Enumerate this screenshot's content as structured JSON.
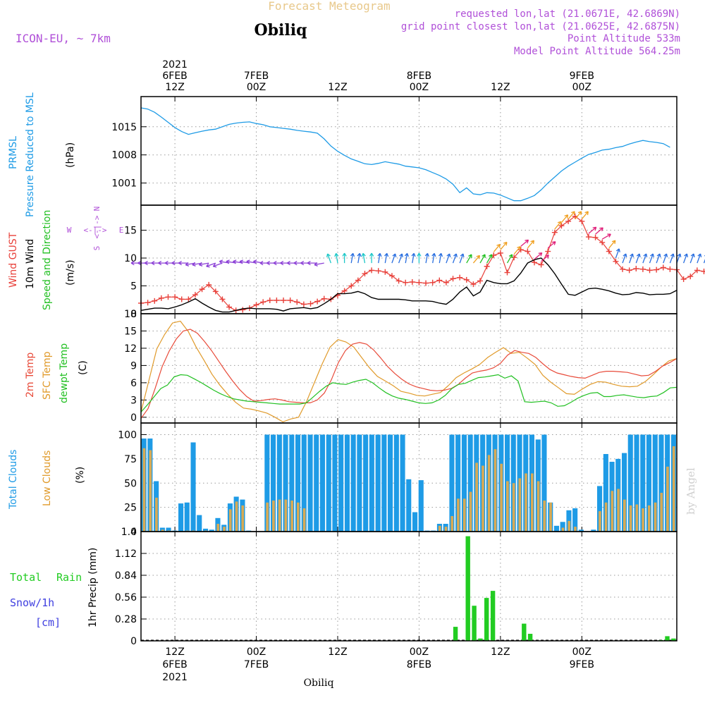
{
  "header": {
    "title_top": "Forecast Meteogram",
    "station": "Obiliq",
    "model": "ICON-EU, ~ 7km",
    "requested": "requested lon,lat (21.0671E, 42.6869N)",
    "grid_point": "grid point closest lon,lat (21.0625E, 42.6875N)",
    "point_altitude": "Point Altitude 533m",
    "model_altitude": "Model Point Altitude 564.25m",
    "credit": "by Angel"
  },
  "colors": {
    "pressure": "#1e9be6",
    "gust": "#e8403a",
    "wind10": "#000000",
    "temp2m": "#e84b3a",
    "sfc": "#e09a2a",
    "dewpt": "#22c022",
    "total_cloud": "#1e9be6",
    "low_cloud": "#d7aa55",
    "rain": "#22cc22",
    "snow": "#4040e0",
    "legend_purple": "#b050d8",
    "title_orange": "#e8c88a"
  },
  "time_axis": {
    "top_labels": [
      {
        "hour": 12,
        "lines": [
          "2021",
          "6FEB",
          "12Z"
        ]
      },
      {
        "hour": 24,
        "lines": [
          "7FEB",
          "00Z"
        ]
      },
      {
        "hour": 36,
        "lines": [
          "12Z"
        ]
      },
      {
        "hour": 48,
        "lines": [
          "8FEB",
          "00Z"
        ]
      },
      {
        "hour": 60,
        "lines": [
          "12Z"
        ]
      },
      {
        "hour": 72,
        "lines": [
          "9FEB",
          "00Z"
        ]
      }
    ],
    "bottom_labels": [
      {
        "hour": 12,
        "lines": [
          "12Z",
          "6FEB",
          "2021"
        ]
      },
      {
        "hour": 24,
        "lines": [
          "00Z",
          "7FEB"
        ]
      },
      {
        "hour": 36,
        "lines": [
          "12Z"
        ]
      },
      {
        "hour": 48,
        "lines": [
          "00Z",
          "8FEB"
        ]
      },
      {
        "hour": 60,
        "lines": [
          "12Z"
        ]
      },
      {
        "hour": 72,
        "lines": [
          "00Z",
          "9FEB"
        ]
      }
    ],
    "bottom_station": "Obiliq"
  },
  "panels": {
    "pressure": {
      "labels": [
        "PRMSL",
        "Pressure Reduced to MSL"
      ],
      "unit": "(hPa)"
    },
    "wind": {
      "labels": [
        "Wind GUST",
        "10m Wind",
        "Speed and Direction"
      ],
      "unit": "(m/s)",
      "compass": {
        "n": "N",
        "s": "S",
        "w": "W",
        "e": "E"
      }
    },
    "temp": {
      "labels": [
        "2m Temp",
        "SFC Temp",
        "dewpt Temp"
      ],
      "unit": "(C)"
    },
    "cloud": {
      "labels": [
        "Total Clouds",
        "Low Clouds"
      ],
      "unit": "(%)"
    },
    "precip": {
      "labels": [
        "Total",
        "Rain",
        "Snow/1h",
        "[cm]"
      ],
      "unit": "1hr Precip (mm)"
    }
  },
  "chart_data": [
    {
      "type": "line",
      "title": "PRMSL Pressure Reduced to MSL",
      "ylabel": "hPa",
      "xlabel": "hours since 2021-02-06 00Z",
      "ylim": [
        995.5,
        1022.5
      ],
      "yticks": [
        1001,
        1008,
        1015
      ],
      "x_step": 1,
      "x_start": 7,
      "series": [
        {
          "name": "PRMSL",
          "values": [
            1019.7,
            1019.4,
            1018.6,
            1017.4,
            1016.1,
            1014.8,
            1013.8,
            1013.1,
            1013.5,
            1013.9,
            1014.2,
            1014.4,
            1015.0,
            1015.6,
            1015.9,
            1016.1,
            1016.2,
            1015.8,
            1015.5,
            1015.0,
            1014.8,
            1014.6,
            1014.4,
            1014.1,
            1013.9,
            1013.7,
            1013.4,
            1012.0,
            1010.2,
            1008.9,
            1007.9,
            1007.0,
            1006.4,
            1005.8,
            1005.6,
            1005.9,
            1006.3,
            1006.0,
            1005.7,
            1005.2,
            1005.0,
            1004.8,
            1004.3,
            1003.6,
            1002.9,
            1002.0,
            1000.7,
            998.6,
            999.8,
            998.3,
            998.1,
            998.6,
            998.5,
            998.0,
            997.3,
            996.6,
            996.6,
            997.2,
            997.9,
            999.3,
            1001.0,
            1002.5,
            1004.0,
            1005.2,
            1006.2,
            1007.2,
            1008.1,
            1008.6,
            1009.2,
            1009.4,
            1009.8,
            1010.1,
            1010.7,
            1011.2,
            1011.6,
            1011.3,
            1011.1,
            1010.8,
            1009.9
          ]
        }
      ]
    },
    {
      "type": "line",
      "title": "Wind GUST / 10m Wind Speed and Direction",
      "ylabel": "m/s",
      "ylim": [
        0,
        19.5
      ],
      "yticks": [
        0,
        5,
        10,
        15
      ],
      "x_step": 1,
      "x_start": 7,
      "series": [
        {
          "name": "Wind GUST",
          "values": [
            1.9,
            2.0,
            2.3,
            2.8,
            3.0,
            3.0,
            2.6,
            2.6,
            3.4,
            4.4,
            5.2,
            4.0,
            2.6,
            1.2,
            0.6,
            0.7,
            1.0,
            1.6,
            2.1,
            2.4,
            2.4,
            2.4,
            2.4,
            2.1,
            1.7,
            1.8,
            2.2,
            2.7,
            2.6,
            3.3,
            4.1,
            5.0,
            6.0,
            7.2,
            7.8,
            7.7,
            7.5,
            6.8,
            5.9,
            5.6,
            5.7,
            5.6,
            5.5,
            5.6,
            6.0,
            5.6,
            6.3,
            6.5,
            6.1,
            5.3,
            5.9,
            8.5,
            10.5,
            10.9,
            7.4,
            10.1,
            11.5,
            11.2,
            9.2,
            8.8,
            11.2,
            14.6,
            15.8,
            16.6,
            17.5,
            16.6,
            13.8,
            13.7,
            12.8,
            11.2,
            9.4,
            8.0,
            7.8,
            8.1,
            8.0,
            7.8,
            7.9,
            8.3,
            8.0,
            7.9,
            6.2,
            6.7,
            7.8,
            7.6,
            7.4,
            7.5,
            7.4
          ]
        },
        {
          "name": "10m Wind",
          "values": [
            0.6,
            0.8,
            1.0,
            1.0,
            0.9,
            1.2,
            1.6,
            2.1,
            2.7,
            1.9,
            1.2,
            0.6,
            0.3,
            0.3,
            0.6,
            0.9,
            1.0,
            0.9,
            0.9,
            0.9,
            0.8,
            0.5,
            0.9,
            1.0,
            1.1,
            0.9,
            1.1,
            1.8,
            2.6,
            3.6,
            3.6,
            3.7,
            4.0,
            3.6,
            2.9,
            2.6,
            2.6,
            2.6,
            2.6,
            2.5,
            2.3,
            2.3,
            2.3,
            2.2,
            1.9,
            1.7,
            2.6,
            3.9,
            4.8,
            3.2,
            3.9,
            6.0,
            5.6,
            5.4,
            5.4,
            5.9,
            7.3,
            9.1,
            9.7,
            10.0,
            8.8,
            7.2,
            5.3,
            3.5,
            3.3,
            3.9,
            4.5,
            4.6,
            4.4,
            4.1,
            3.7,
            3.4,
            3.5,
            3.8,
            3.7,
            3.4,
            3.5,
            3.5,
            3.6,
            4.2
          ]
        },
        {
          "name": "Wind direction (deg, from)",
          "values": [
            90,
            90,
            90,
            90,
            90,
            90,
            90,
            90,
            80,
            80,
            80,
            70,
            70,
            100,
            100,
            100,
            100,
            100,
            100,
            90,
            90,
            90,
            90,
            90,
            90,
            90,
            90,
            80,
            160,
            170,
            180,
            190,
            190,
            170,
            180,
            190,
            190,
            200,
            200,
            190,
            190,
            180,
            190,
            190,
            190,
            200,
            200,
            200,
            210,
            220,
            210,
            210,
            220,
            220,
            210,
            220,
            230,
            220,
            230,
            230,
            230,
            220,
            220,
            220,
            220,
            220,
            230,
            230,
            240,
            220,
            200,
            200,
            200,
            200,
            200,
            200,
            200,
            200,
            200,
            200,
            200,
            200,
            200,
            200,
            200,
            200,
            200,
            200
          ]
        }
      ],
      "x_step_wind": 1
    },
    {
      "type": "line",
      "title": "2m Temp / SFC Temp / dewpt Temp",
      "ylabel": "C",
      "ylim": [
        -1,
        18
      ],
      "yticks": [
        0,
        3,
        6,
        9,
        12,
        15,
        18
      ],
      "x_step": 1,
      "x_start": 7,
      "series": [
        {
          "name": "2m Temp",
          "values": [
            -0.2,
            1.5,
            5.0,
            8.8,
            11.5,
            13.6,
            15.0,
            15.3,
            14.6,
            13.2,
            11.6,
            9.8,
            8.0,
            6.3,
            4.8,
            3.6,
            2.8,
            2.9,
            3.1,
            3.2,
            3.0,
            2.7,
            2.6,
            2.5,
            2.5,
            3.0,
            4.2,
            6.5,
            9.5,
            11.6,
            12.7,
            13.0,
            12.7,
            11.7,
            10.3,
            8.8,
            7.6,
            6.6,
            5.8,
            5.3,
            5.0,
            4.7,
            4.6,
            4.7,
            5.0,
            5.7,
            6.8,
            7.7,
            8.0,
            8.2,
            8.6,
            9.4,
            10.8,
            11.6,
            11.3,
            11.1,
            10.4,
            9.3,
            8.3,
            7.7,
            7.4,
            7.1,
            6.9,
            6.8,
            7.3,
            7.8,
            8.0,
            8.0,
            7.9,
            7.8,
            7.5,
            7.2,
            7.3,
            8.0,
            8.9,
            9.5,
            10.2
          ]
        },
        {
          "name": "SFC Temp",
          "values": [
            0.9,
            6.4,
            11.9,
            14.4,
            16.4,
            16.7,
            14.9,
            12.2,
            9.9,
            7.5,
            5.6,
            4.0,
            2.6,
            1.6,
            1.4,
            1.1,
            0.7,
            0.0,
            -0.8,
            -0.3,
            0.0,
            2.7,
            6.0,
            9.3,
            12.2,
            13.5,
            13.1,
            12.2,
            10.4,
            8.6,
            7.1,
            6.3,
            5.5,
            4.5,
            4.2,
            3.8,
            3.7,
            4.0,
            4.3,
            5.5,
            6.9,
            7.7,
            8.4,
            9.2,
            10.4,
            11.3,
            12.1,
            11.1,
            11.3,
            10.3,
            9.2,
            7.3,
            6.1,
            5.1,
            4.1,
            4.0,
            4.9,
            5.7,
            6.2,
            6.1,
            5.7,
            5.4,
            5.3,
            5.4,
            6.2,
            7.4,
            8.7,
            9.8,
            10.2
          ]
        },
        {
          "name": "dewpt Temp",
          "values": [
            0.9,
            2.2,
            3.6,
            5.0,
            5.6,
            7.0,
            7.4,
            7.3,
            6.7,
            6.1,
            5.4,
            4.7,
            4.1,
            3.6,
            3.2,
            3.0,
            2.8,
            2.7,
            2.6,
            2.5,
            2.4,
            2.3,
            2.3,
            2.3,
            2.3,
            2.5,
            3.5,
            4.5,
            5.4,
            6.0,
            5.8,
            5.7,
            6.1,
            6.4,
            6.6,
            6.0,
            5.1,
            4.3,
            3.7,
            3.3,
            3.1,
            2.8,
            2.5,
            2.4,
            2.5,
            3.0,
            3.8,
            5.0,
            5.7,
            5.9,
            6.4,
            6.9,
            7.0,
            7.2,
            7.4,
            6.8,
            7.2,
            6.3,
            2.7,
            2.6,
            2.7,
            2.8,
            2.5,
            1.9,
            2.0,
            2.6,
            3.3,
            3.8,
            4.2,
            4.3,
            3.6,
            3.6,
            3.8,
            3.9,
            3.7,
            3.5,
            3.4,
            3.6,
            3.7,
            4.3,
            5.1,
            5.2
          ]
        }
      ]
    },
    {
      "type": "bar",
      "title": "Total Clouds / Low Clouds",
      "ylabel": "%",
      "ylim": [
        0,
        100
      ],
      "yticks": [
        0,
        25,
        50,
        75,
        100
      ],
      "x_step": 1,
      "x_start": 7,
      "series": [
        {
          "name": "Total Clouds",
          "values": [
            96,
            96,
            52,
            4,
            4,
            1,
            29,
            30,
            92,
            17,
            3,
            2,
            14,
            7,
            29,
            36,
            33,
            1,
            0,
            0,
            100,
            100,
            100,
            100,
            100,
            100,
            100,
            100,
            100,
            100,
            100,
            100,
            100,
            100,
            100,
            100,
            100,
            100,
            100,
            100,
            100,
            100,
            100,
            54,
            20,
            53,
            1,
            1,
            8,
            8,
            100,
            100,
            100,
            100,
            100,
            100,
            100,
            100,
            100,
            100,
            100,
            100,
            100,
            100,
            95,
            100,
            30,
            6,
            10,
            22,
            24,
            2,
            0,
            2,
            47,
            80,
            72,
            75,
            81,
            100,
            100,
            100,
            100,
            100,
            100,
            100,
            100
          ]
        },
        {
          "name": "Low Clouds",
          "values": [
            86,
            84,
            35,
            2,
            1,
            0,
            0,
            1,
            1,
            0,
            1,
            0,
            8,
            5,
            23,
            31,
            27,
            0,
            0,
            0,
            30,
            32,
            33,
            33,
            32,
            30,
            24,
            0,
            0,
            0,
            0,
            0,
            0,
            0,
            0,
            0,
            0,
            0,
            0,
            0,
            0,
            0,
            0,
            0,
            0,
            0,
            0,
            0,
            6,
            5,
            16,
            34,
            34,
            41,
            71,
            68,
            79,
            85,
            70,
            52,
            50,
            55,
            60,
            60,
            52,
            32,
            30,
            0,
            4,
            11,
            5,
            0,
            0,
            0,
            21,
            30,
            42,
            44,
            33,
            27,
            28,
            24,
            27,
            30,
            40,
            67,
            88,
            100,
            94
          ]
        }
      ]
    },
    {
      "type": "bar",
      "title": "1hr Precip",
      "ylabel": "mm",
      "ylim": [
        0,
        1.4
      ],
      "yticks": [
        0,
        0.28,
        0.56,
        0.84,
        1.12,
        1.4
      ],
      "x_step": 1,
      "x_start": 7,
      "series": [
        {
          "name": "Total Rain",
          "values": [
            0,
            0,
            0,
            0,
            0,
            0,
            0,
            0,
            0,
            0,
            0,
            0,
            0,
            0,
            0,
            0,
            0,
            0,
            0,
            0,
            0,
            0,
            0,
            0,
            0,
            0,
            0,
            0,
            0,
            0,
            0,
            0,
            0,
            0,
            0,
            0,
            0,
            0,
            0,
            0,
            0,
            0,
            0,
            0,
            0,
            0,
            0,
            0,
            0,
            0,
            0.18,
            0,
            1.34,
            0.45,
            0.03,
            0.55,
            0.64,
            0,
            0,
            0,
            0,
            0.22,
            0.09,
            0,
            0,
            0,
            0,
            0,
            0,
            0,
            0,
            0,
            0,
            0,
            0,
            0,
            0,
            0,
            0,
            0,
            0,
            0,
            0,
            0.01,
            0.06,
            0.03
          ]
        },
        {
          "name": "Snow/1h",
          "values": []
        }
      ]
    }
  ]
}
